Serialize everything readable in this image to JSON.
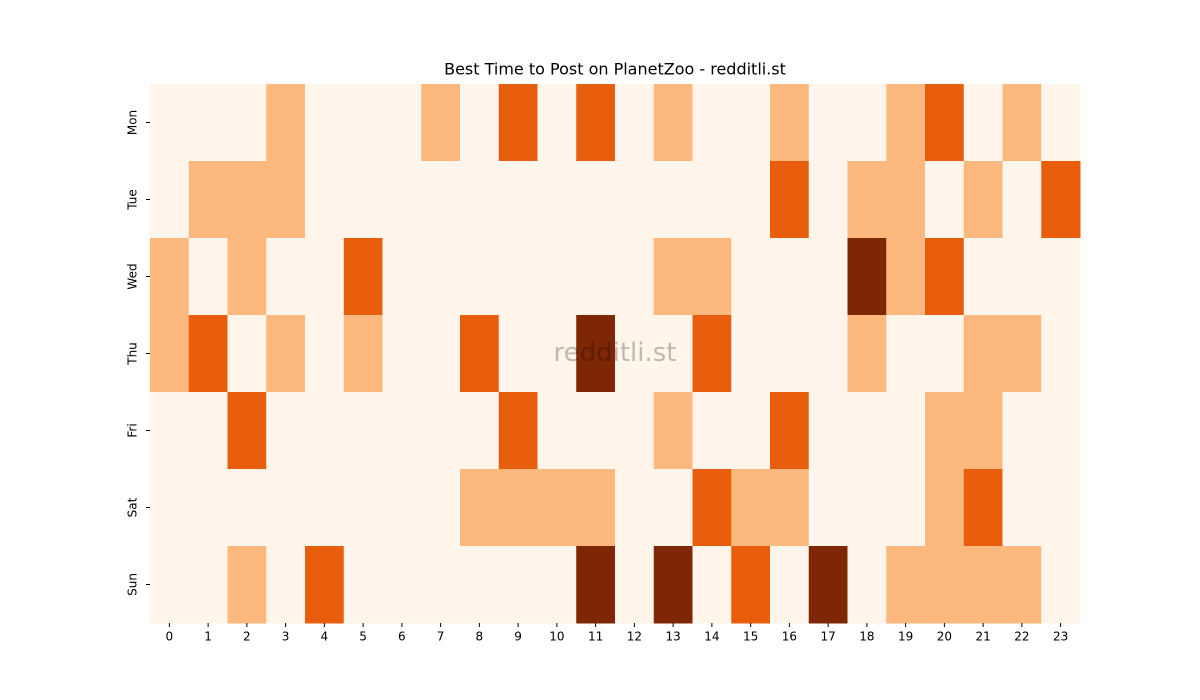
{
  "chart_data": {
    "type": "heatmap",
    "title": "Best Time to Post on PlanetZoo - redditli.st",
    "watermark": "redditli.st",
    "x": [
      0,
      1,
      2,
      3,
      4,
      5,
      6,
      7,
      8,
      9,
      10,
      11,
      12,
      13,
      14,
      15,
      16,
      17,
      18,
      19,
      20,
      21,
      22,
      23
    ],
    "categories": [
      "Mon",
      "Tue",
      "Wed",
      "Thu",
      "Fri",
      "Sat",
      "Sun"
    ],
    "values": [
      [
        0,
        0,
        0,
        1,
        0,
        0,
        0,
        1,
        0,
        2,
        0,
        2,
        0,
        1,
        0,
        0,
        1,
        0,
        0,
        1,
        2,
        0,
        1,
        0
      ],
      [
        0,
        1,
        1,
        1,
        0,
        0,
        0,
        0,
        0,
        0,
        0,
        0,
        0,
        0,
        0,
        0,
        2,
        0,
        1,
        1,
        0,
        1,
        0,
        2
      ],
      [
        1,
        0,
        1,
        0,
        0,
        2,
        0,
        0,
        0,
        0,
        0,
        0,
        0,
        1,
        1,
        0,
        0,
        0,
        3,
        1,
        2,
        0,
        0,
        0
      ],
      [
        1,
        2,
        0,
        1,
        0,
        1,
        0,
        0,
        2,
        0,
        0,
        3,
        0,
        0,
        2,
        0,
        0,
        0,
        1,
        0,
        0,
        1,
        1,
        0
      ],
      [
        0,
        0,
        2,
        0,
        0,
        0,
        0,
        0,
        0,
        2,
        0,
        0,
        0,
        1,
        0,
        0,
        2,
        0,
        0,
        0,
        1,
        1,
        0,
        0
      ],
      [
        0,
        0,
        0,
        0,
        0,
        0,
        0,
        0,
        1,
        1,
        1,
        1,
        0,
        0,
        2,
        1,
        1,
        0,
        0,
        0,
        1,
        2,
        0,
        0
      ],
      [
        0,
        0,
        1,
        0,
        2,
        0,
        0,
        0,
        0,
        0,
        0,
        3,
        0,
        3,
        0,
        2,
        0,
        3,
        0,
        1,
        1,
        1,
        1,
        0
      ]
    ],
    "colors": [
      "#fff5eb",
      "#fdb97d",
      "#e95e0d",
      "#7f2704"
    ]
  }
}
